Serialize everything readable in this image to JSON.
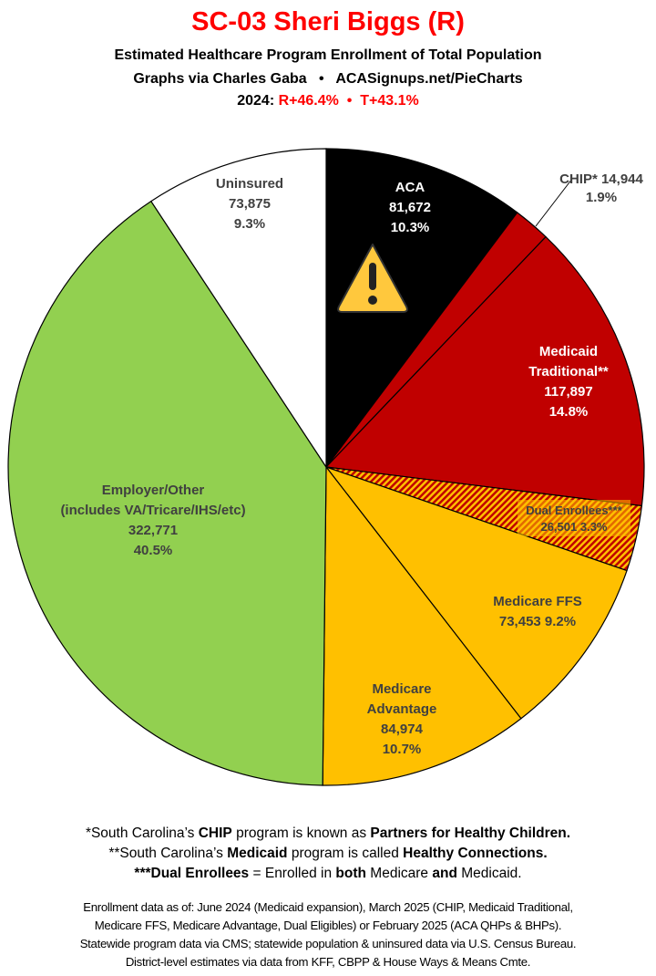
{
  "header": {
    "title": "SC-03 Sheri Biggs (R)",
    "subtitle": "Estimated Healthcare Program Enrollment of Total Population",
    "credit": "Graphs via Charles Gaba   •   ACASignups.net/PieCharts",
    "year_label": "2024:",
    "margins": "R+46.4%  •  T+43.1%"
  },
  "chart_data": {
    "type": "pie",
    "start": "12 o'clock, clockwise",
    "slices": [
      {
        "name": "ACA",
        "value": 81672,
        "pct": "10.3%",
        "value_label": "81,672",
        "color": "#000000",
        "icon": "warning-icon"
      },
      {
        "name": "CHIP*",
        "value": 14944,
        "pct": "1.9%",
        "value_label": "14,944",
        "color": "#c00000"
      },
      {
        "name": "Medicaid Traditional**",
        "value": 117897,
        "pct": "14.8%",
        "value_label": "117,897",
        "color": "#c00000"
      },
      {
        "name": "Dual Enrollees***",
        "value": 26501,
        "pct": "3.3%",
        "value_label": "26,501",
        "color": "hatched #c00000/#ffc000"
      },
      {
        "name": "Medicare FFS",
        "value": 73453,
        "pct": "9.2%",
        "value_label": "73,453",
        "color": "#ffc000"
      },
      {
        "name": "Medicare Advantage",
        "value": 84974,
        "pct": "10.7%",
        "value_label": "84,974",
        "color": "#ffc000"
      },
      {
        "name": "Employer/Other",
        "sub": "(includes VA/Tricare/IHS/etc)",
        "value": 322771,
        "pct": "40.5%",
        "value_label": "322,771",
        "color": "#92d050"
      },
      {
        "name": "Uninsured",
        "value": 73875,
        "pct": "9.3%",
        "value_label": "73,875",
        "color": "#ffffff"
      }
    ]
  },
  "labels": {
    "aca": [
      "ACA",
      "81,672",
      "10.3%"
    ],
    "chip": [
      "CHIP* 14,944",
      "1.9%"
    ],
    "medicaid": [
      "Medicaid",
      "Traditional**",
      "117,897",
      "14.8%"
    ],
    "dual": [
      "Dual Enrollees***",
      "26,501 3.3%"
    ],
    "ffs": [
      "Medicare FFS",
      "73,453 9.2%"
    ],
    "ma": [
      "Medicare",
      "Advantage",
      "84,974",
      "10.7%"
    ],
    "emp": [
      "Employer/Other",
      "(includes VA/Tricare/IHS/etc)",
      "322,771",
      "40.5%"
    ],
    "unins": [
      "Uninsured",
      "73,875",
      "9.3%"
    ]
  },
  "footnotes": [
    [
      {
        "t": "*South Carolina’s "
      },
      {
        "t": "CHIP",
        "b": true
      },
      {
        "t": " program is known as "
      },
      {
        "t": "Partners for Healthy Children.",
        "b": true
      }
    ],
    [
      {
        "t": "**South Carolina’s "
      },
      {
        "t": "Medicaid",
        "b": true
      },
      {
        "t": " program is called "
      },
      {
        "t": "Healthy Connections.",
        "b": true
      }
    ],
    [
      {
        "t": "***Dual Enrollees",
        "b": true
      },
      {
        "t": " = Enrolled in "
      },
      {
        "t": "both",
        "b": true
      },
      {
        "t": " Medicare "
      },
      {
        "t": "and",
        "b": true
      },
      {
        "t": " Medicaid."
      }
    ]
  ],
  "sources": [
    "Enrollment data as of: June 2024 (Medicaid expansion), March 2025 (CHIP, Medicaid Traditional,",
    "Medicare FFS, Medicare Advantage, Dual Eligibles) or February 2025 (ACA QHPs & BHPs).",
    "Statewide program data via CMS; statewide population & uninsured data via U.S. Census Bureau.",
    "District-level estimates via data from KFF, CBPP & House Ways & Means Cmte."
  ]
}
